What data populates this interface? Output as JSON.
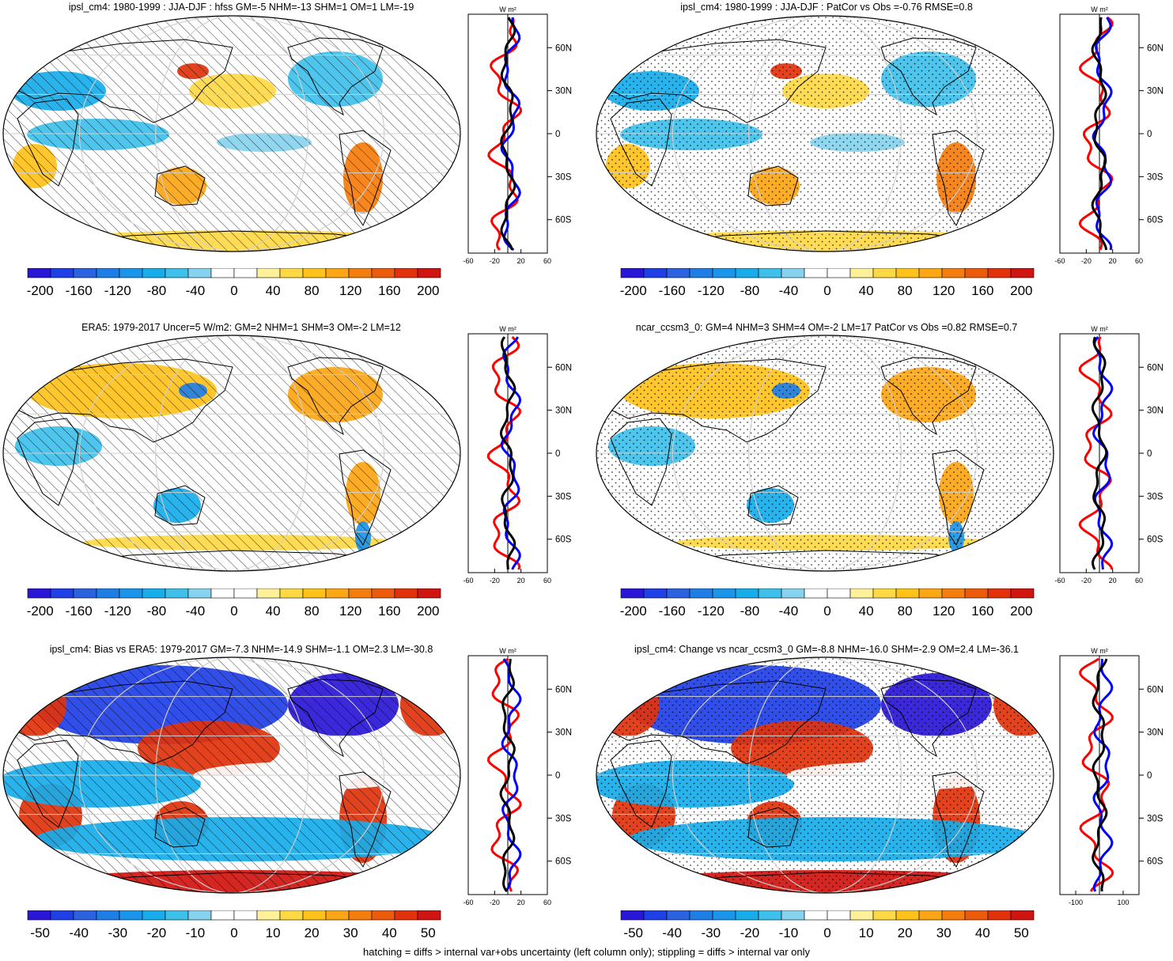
{
  "panels": [
    {
      "title": "ipsl_cm4: 1980-1999 : JJA-DJF : hfss GM=-5 NHM=-13 SHM=1 OM=1 LM=-19",
      "overlay": "hatch",
      "scheme": "a"
    },
    {
      "title": "ipsl_cm4: 1980-1999 : JJA-DJF : PatCor vs Obs =-0.76 RMSE=0.8",
      "overlay": "stipple",
      "scheme": "a"
    },
    {
      "title": "ERA5: 1979-2017 Uncer=5 W/m2: GM=2 NHM=1 SHM=3 OM=-2 LM=12",
      "overlay": "hatch",
      "scheme": "b"
    },
    {
      "title": "ncar_ccsm3_0: GM=4 NHM=3 SHM=4 OM=-2 LM=17 PatCor vs Obs =0.82 RMSE=0.7",
      "overlay": "stipple",
      "scheme": "b"
    },
    {
      "title": "ipsl_cm4: Bias vs ERA5: 1979-2017 GM=-7.3 NHM=-14.9 SHM=-1.1 OM=2.3 LM=-30.8",
      "overlay": "hatch",
      "scheme": "c"
    },
    {
      "title": "ipsl_cm4: Change vs ncar_ccsm3_0 GM=-8.8 NHM=-16.0 SHM=-2.9 OM=2.4 LM=-36.1",
      "overlay": "stipple",
      "scheme": "c"
    }
  ],
  "profile_units": "W m²",
  "latitude_labels": [
    "60N",
    "30N",
    "0",
    "30S",
    "60S"
  ],
  "profile_x_labels": {
    "standard": [
      "-60",
      "-20",
      "20",
      "60"
    ],
    "wide": [
      "-100",
      "100"
    ]
  },
  "colorbars": {
    "large": [
      "-200",
      "-160",
      "-120",
      "-80",
      "-40",
      "0",
      "40",
      "80",
      "120",
      "160",
      "200"
    ],
    "small": [
      "-50",
      "-40",
      "-30",
      "-20",
      "-10",
      "0",
      "10",
      "20",
      "30",
      "40",
      "50"
    ]
  },
  "colors": {
    "palette": [
      "#2a16d6",
      "#1f40e6",
      "#2b62e0",
      "#1f7ee6",
      "#1b95ea",
      "#17adea",
      "#3ec0ea",
      "#87d2ee",
      "#ffffff",
      "#ffffff",
      "#fff09a",
      "#ffd944",
      "#ffc21b",
      "#fca515",
      "#f57d0d",
      "#ec5a0c",
      "#e1320c",
      "#d0140f"
    ],
    "zonal_mean_total": "#000000",
    "zonal_mean_ocean": "#0000ff",
    "zonal_mean_land": "#ff0000",
    "coastline": "#000000",
    "graticule": "#cfcfcf"
  },
  "footer": "hatching = diffs > internal var+obs uncertainty (left column only); stippling = diffs > internal var only"
}
